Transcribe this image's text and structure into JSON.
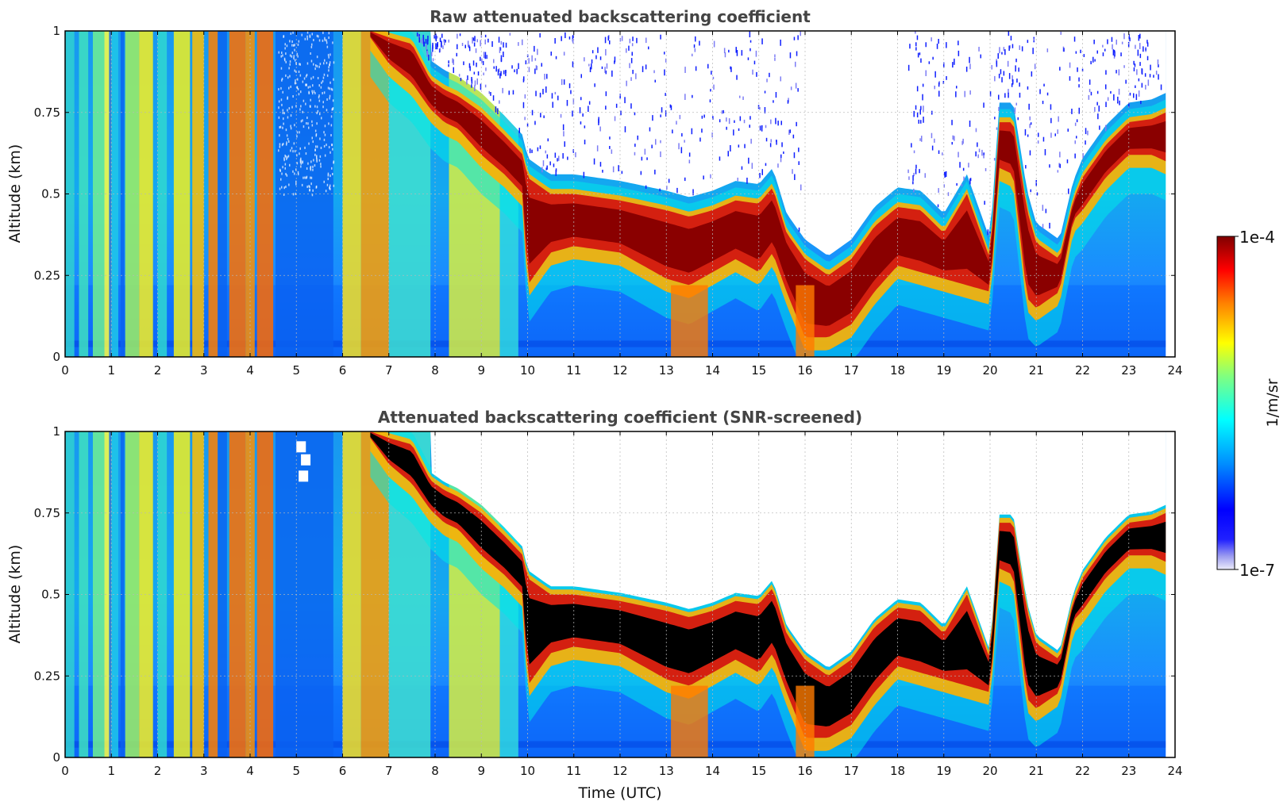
{
  "chart_data": [
    {
      "type": "heatmap",
      "title": "Raw attenuated backscattering coefficient",
      "xlabel": "",
      "ylabel": "Altitude (km)",
      "xlim": [
        0,
        24
      ],
      "ylim": [
        0,
        1
      ],
      "x_ticks": [
        "0",
        "1",
        "2",
        "3",
        "4",
        "5",
        "6",
        "7",
        "8",
        "9",
        "10",
        "11",
        "12",
        "13",
        "14",
        "15",
        "16",
        "17",
        "18",
        "19",
        "20",
        "21",
        "22",
        "23",
        "24"
      ],
      "y_ticks": [
        "0",
        "0.25",
        "0.5",
        "0.75",
        "1"
      ],
      "grid": true,
      "colorscale": "jet, log",
      "color_range": [
        1e-07,
        0.0001
      ],
      "data_coverage_hours": [
        0,
        23.8
      ],
      "cloud_layer": {
        "description_source": "strong backscatter layer (dark red)",
        "x": [
          6.6,
          7.0,
          7.5,
          7.9,
          8.2,
          8.5,
          9.0,
          9.5,
          9.9,
          10.0,
          10.5,
          11.0,
          12.0,
          13.0,
          13.5,
          14.0,
          14.5,
          15.0,
          15.3,
          15.6,
          16.0,
          16.5,
          17.0,
          17.5,
          18.0,
          18.5,
          19.0,
          19.5,
          20.0,
          20.2,
          20.5,
          20.8,
          21.0,
          21.5,
          21.8,
          22.0,
          22.5,
          23.0,
          23.5,
          23.8
        ],
        "top_km": [
          1.0,
          0.98,
          0.96,
          0.85,
          0.82,
          0.8,
          0.75,
          0.68,
          0.62,
          0.55,
          0.5,
          0.5,
          0.48,
          0.45,
          0.43,
          0.45,
          0.48,
          0.47,
          0.52,
          0.38,
          0.3,
          0.25,
          0.3,
          0.4,
          0.46,
          0.45,
          0.38,
          0.5,
          0.3,
          0.72,
          0.72,
          0.45,
          0.35,
          0.3,
          0.48,
          0.55,
          0.65,
          0.72,
          0.73,
          0.75
        ],
        "base_km": [
          0.98,
          0.9,
          0.84,
          0.76,
          0.72,
          0.7,
          0.62,
          0.56,
          0.5,
          0.22,
          0.32,
          0.34,
          0.32,
          0.24,
          0.22,
          0.26,
          0.3,
          0.26,
          0.32,
          0.2,
          0.06,
          0.06,
          0.1,
          0.2,
          0.28,
          0.26,
          0.24,
          0.22,
          0.2,
          0.58,
          0.56,
          0.18,
          0.15,
          0.2,
          0.42,
          0.45,
          0.55,
          0.62,
          0.62,
          0.6
        ]
      }
    },
    {
      "type": "heatmap",
      "title": "Attenuated backscattering coefficient (SNR-screened)",
      "xlabel": "Time (UTC)",
      "ylabel": "Altitude (km)",
      "xlim": [
        0,
        24
      ],
      "ylim": [
        0,
        1
      ],
      "x_ticks": [
        "0",
        "1",
        "2",
        "3",
        "4",
        "5",
        "6",
        "7",
        "8",
        "9",
        "10",
        "11",
        "12",
        "13",
        "14",
        "15",
        "16",
        "17",
        "18",
        "19",
        "20",
        "21",
        "22",
        "23",
        "24"
      ],
      "y_ticks": [
        "0",
        "0.25",
        "0.5",
        "0.75",
        "1"
      ],
      "grid": true,
      "colorscale": "jet, log",
      "color_range": [
        1e-07,
        0.0001
      ],
      "data_coverage_hours": [
        0,
        23.8
      ],
      "saturated_color": "#000000"
    }
  ],
  "colorbar": {
    "max_label": "1e-4",
    "min_label": "1e-7",
    "label": "1/m/sr",
    "colors": [
      "#e8e8f8",
      "#00007f",
      "#0000ff",
      "#0080ff",
      "#00ffff",
      "#80ff80",
      "#ffff00",
      "#ff8000",
      "#ff0000",
      "#7f0000"
    ]
  }
}
